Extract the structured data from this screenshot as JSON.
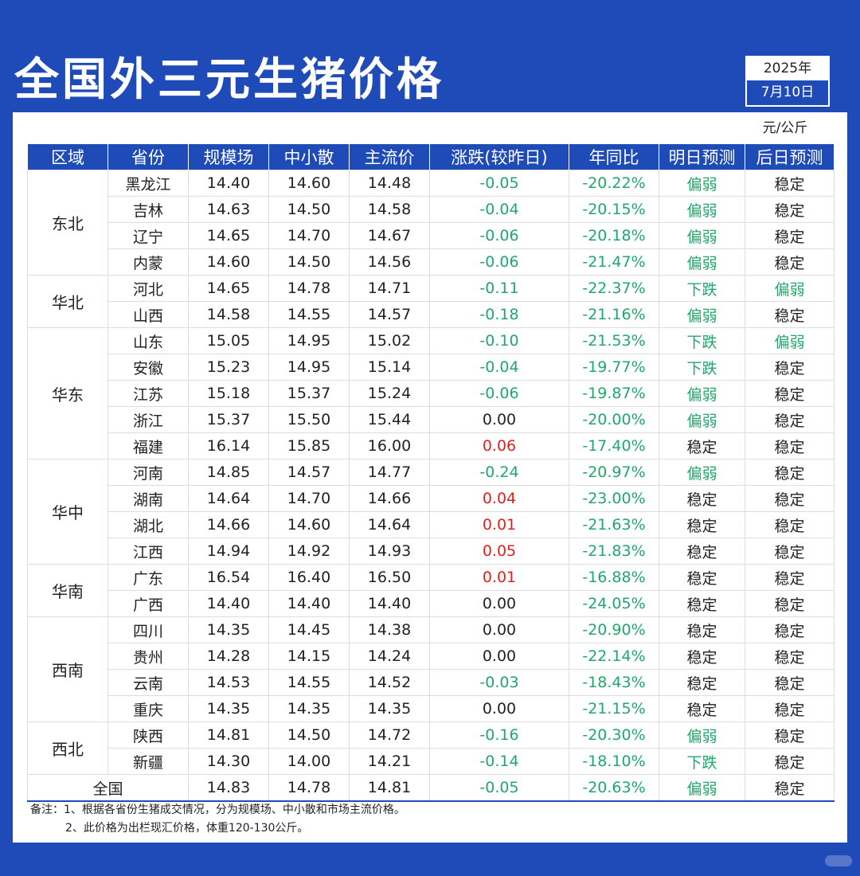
{
  "title": "全国外三元生猪价格",
  "date": {
    "year": "2025年",
    "day": "7月10日"
  },
  "unit": "元/公斤",
  "headers": [
    "区域",
    "省份",
    "规模场",
    "中小散",
    "主流价",
    "涨跌(较昨日)",
    "年同比",
    "明日预测",
    "后日预测"
  ],
  "groups": [
    {
      "region": "东北",
      "rows": [
        [
          "黑龙江",
          "14.40",
          "14.60",
          "14.48",
          "-0.05",
          "-20.22%",
          "偏弱",
          "稳定"
        ],
        [
          "吉林",
          "14.63",
          "14.50",
          "14.58",
          "-0.04",
          "-20.15%",
          "偏弱",
          "稳定"
        ],
        [
          "辽宁",
          "14.65",
          "14.70",
          "14.67",
          "-0.06",
          "-20.18%",
          "偏弱",
          "稳定"
        ],
        [
          "内蒙",
          "14.60",
          "14.50",
          "14.56",
          "-0.06",
          "-21.47%",
          "偏弱",
          "稳定"
        ]
      ]
    },
    {
      "region": "华北",
      "rows": [
        [
          "河北",
          "14.65",
          "14.78",
          "14.71",
          "-0.11",
          "-22.37%",
          "下跌",
          "偏弱"
        ],
        [
          "山西",
          "14.58",
          "14.55",
          "14.57",
          "-0.18",
          "-21.16%",
          "偏弱",
          "稳定"
        ]
      ]
    },
    {
      "region": "华东",
      "rows": [
        [
          "山东",
          "15.05",
          "14.95",
          "15.02",
          "-0.10",
          "-21.53%",
          "下跌",
          "偏弱"
        ],
        [
          "安徽",
          "15.23",
          "14.95",
          "15.14",
          "-0.04",
          "-19.77%",
          "下跌",
          "稳定"
        ],
        [
          "江苏",
          "15.18",
          "15.37",
          "15.24",
          "-0.06",
          "-19.87%",
          "偏弱",
          "稳定"
        ],
        [
          "浙江",
          "15.37",
          "15.50",
          "15.44",
          "0.00",
          "-20.00%",
          "偏弱",
          "稳定"
        ],
        [
          "福建",
          "16.14",
          "15.85",
          "16.00",
          "0.06",
          "-17.40%",
          "稳定",
          "稳定"
        ]
      ]
    },
    {
      "region": "华中",
      "rows": [
        [
          "河南",
          "14.85",
          "14.57",
          "14.77",
          "-0.24",
          "-20.97%",
          "偏弱",
          "稳定"
        ],
        [
          "湖南",
          "14.64",
          "14.70",
          "14.66",
          "0.04",
          "-23.00%",
          "稳定",
          "稳定"
        ],
        [
          "湖北",
          "14.66",
          "14.60",
          "14.64",
          "0.01",
          "-21.63%",
          "稳定",
          "稳定"
        ],
        [
          "江西",
          "14.94",
          "14.92",
          "14.93",
          "0.05",
          "-21.83%",
          "稳定",
          "稳定"
        ]
      ]
    },
    {
      "region": "华南",
      "rows": [
        [
          "广东",
          "16.54",
          "16.40",
          "16.50",
          "0.01",
          "-16.88%",
          "稳定",
          "稳定"
        ],
        [
          "广西",
          "14.40",
          "14.40",
          "14.40",
          "0.00",
          "-24.05%",
          "稳定",
          "稳定"
        ]
      ]
    },
    {
      "region": "西南",
      "rows": [
        [
          "四川",
          "14.35",
          "14.45",
          "14.38",
          "0.00",
          "-20.90%",
          "稳定",
          "稳定"
        ],
        [
          "贵州",
          "14.28",
          "14.15",
          "14.24",
          "0.00",
          "-22.14%",
          "稳定",
          "稳定"
        ],
        [
          "云南",
          "14.53",
          "14.55",
          "14.52",
          "-0.03",
          "-18.43%",
          "稳定",
          "稳定"
        ],
        [
          "重庆",
          "14.35",
          "14.35",
          "14.35",
          "0.00",
          "-21.15%",
          "稳定",
          "稳定"
        ]
      ]
    },
    {
      "region": "西北",
      "rows": [
        [
          "陕西",
          "14.81",
          "14.50",
          "14.72",
          "-0.16",
          "-20.30%",
          "偏弱",
          "稳定"
        ],
        [
          "新疆",
          "14.30",
          "14.00",
          "14.21",
          "-0.14",
          "-18.10%",
          "下跌",
          "稳定"
        ]
      ]
    }
  ],
  "total": [
    "全国",
    "14.83",
    "14.78",
    "14.81",
    "-0.05",
    "-20.63%",
    "偏弱",
    "稳定"
  ],
  "notes": [
    "备注：1、根据各省份生猪成交情况，分为规模场、中小散和市场主流价格。",
    "2、此价格为出栏现汇价格，体重120-130公斤。"
  ],
  "colors": {
    "brand_blue": "#1f4bb8",
    "up_red": "#e0211d",
    "down_green": "#21a76b"
  }
}
